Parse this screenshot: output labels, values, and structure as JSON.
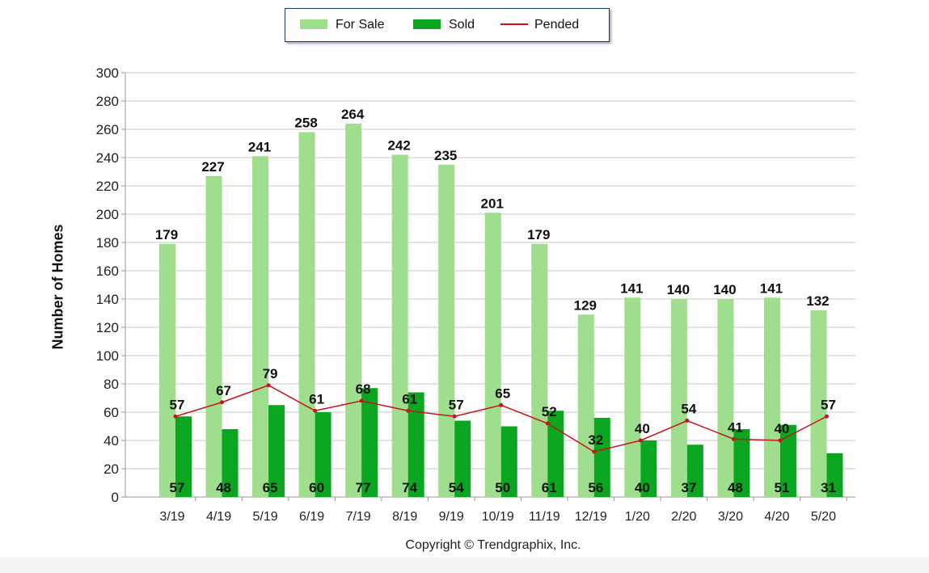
{
  "legend": {
    "for_sale": "For Sale",
    "sold": "Sold",
    "pended": "Pended"
  },
  "copyright": "Copyright © Trendgraphix, Inc.",
  "colors": {
    "for_sale": "#9fde8c",
    "sold": "#0aa61f",
    "pended": "#c8141c",
    "grid": "#c8c8c8"
  },
  "chart_data": {
    "type": "bar",
    "categories": [
      "3/19",
      "4/19",
      "5/19",
      "6/19",
      "7/19",
      "8/19",
      "9/19",
      "10/19",
      "11/19",
      "12/19",
      "1/20",
      "2/20",
      "3/20",
      "4/20",
      "5/20"
    ],
    "series": [
      {
        "name": "For Sale",
        "type": "bar",
        "values": [
          179,
          227,
          241,
          258,
          264,
          242,
          235,
          201,
          179,
          129,
          141,
          140,
          140,
          141,
          132
        ]
      },
      {
        "name": "Sold",
        "type": "bar",
        "values": [
          57,
          48,
          65,
          60,
          77,
          74,
          54,
          50,
          61,
          56,
          40,
          37,
          48,
          51,
          31
        ]
      },
      {
        "name": "Pended",
        "type": "line",
        "values": [
          57,
          67,
          79,
          61,
          68,
          61,
          57,
          65,
          52,
          32,
          40,
          54,
          41,
          40,
          57
        ]
      }
    ],
    "xlabel": "",
    "ylabel": "Number of Homes",
    "ylim": [
      0,
      300
    ],
    "yticks": [
      0,
      20,
      40,
      60,
      80,
      100,
      120,
      140,
      160,
      180,
      200,
      220,
      240,
      260,
      280,
      300
    ],
    "grid": true,
    "legend_position": "top-center"
  }
}
